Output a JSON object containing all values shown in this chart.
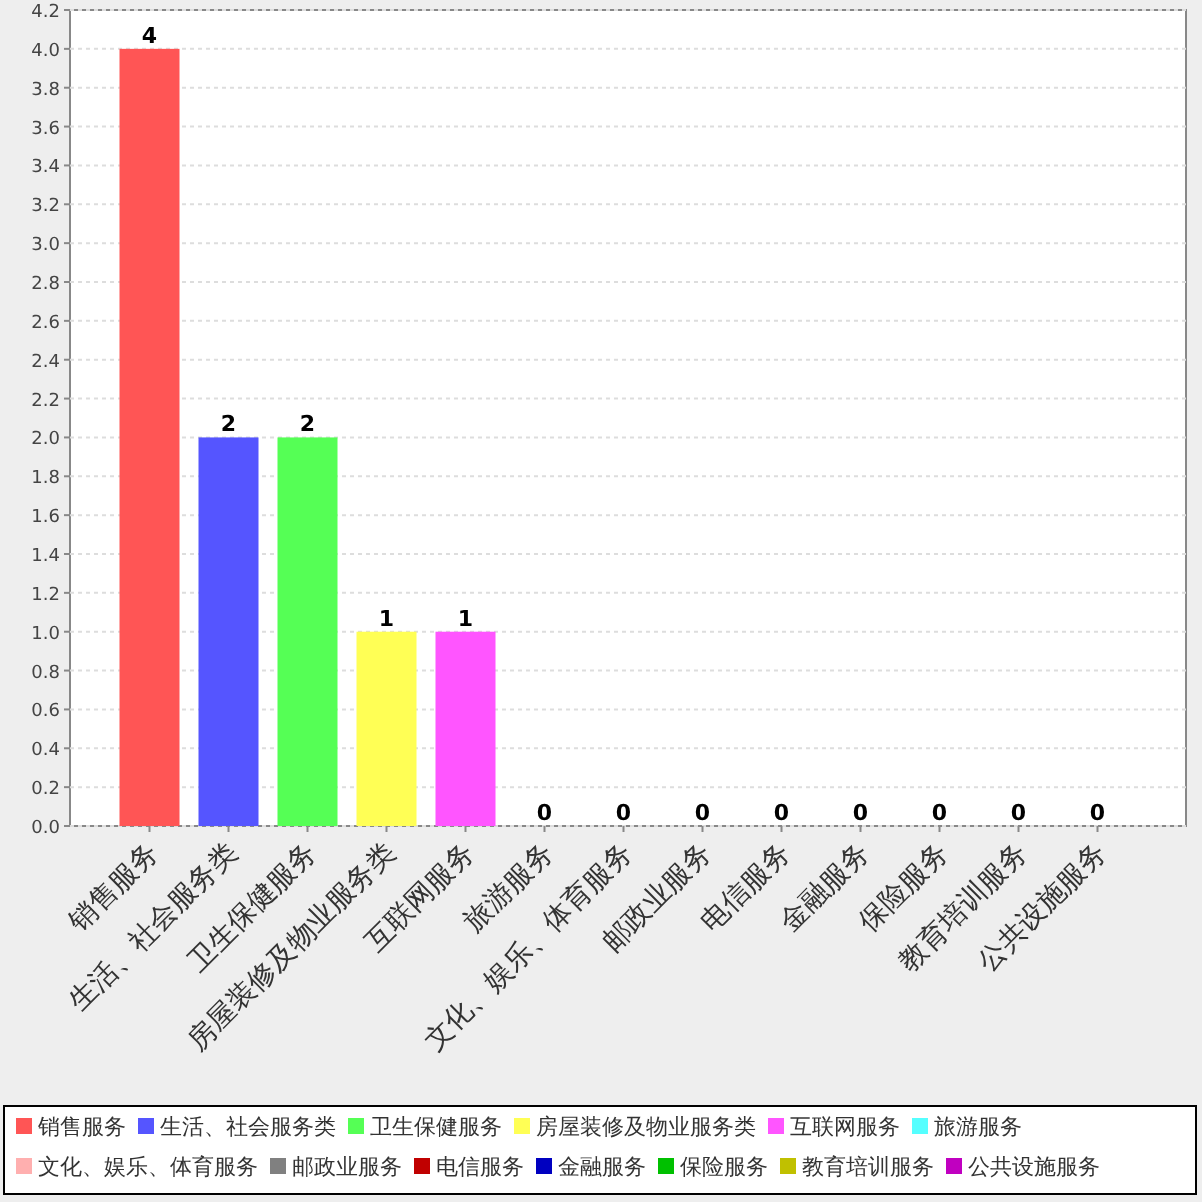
{
  "chart_data": {
    "type": "bar",
    "categories": [
      "销售服务",
      "生活、社会服务类",
      "卫生保健服务",
      "房屋装修及物业服务类",
      "互联网服务",
      "旅游服务",
      "文化、娱乐、体育服务",
      "邮政业服务",
      "电信服务",
      "金融服务",
      "保险服务",
      "教育培训服务",
      "公共设施服务"
    ],
    "series": [
      {
        "name": "销售服务",
        "color": "#ff5555",
        "values": [
          4,
          null,
          null,
          null,
          null,
          null,
          null,
          null,
          null,
          null,
          null,
          null,
          null
        ]
      },
      {
        "name": "生活、社会服务类",
        "color": "#5555ff",
        "values": [
          null,
          2,
          null,
          null,
          null,
          null,
          null,
          null,
          null,
          null,
          null,
          null,
          null
        ]
      },
      {
        "name": "卫生保健服务",
        "color": "#55ff55",
        "values": [
          null,
          null,
          2,
          null,
          null,
          null,
          null,
          null,
          null,
          null,
          null,
          null,
          null
        ]
      },
      {
        "name": "房屋装修及物业服务类",
        "color": "#ffff55",
        "values": [
          null,
          null,
          null,
          1,
          null,
          null,
          null,
          null,
          null,
          null,
          null,
          null,
          null
        ]
      },
      {
        "name": "互联网服务",
        "color": "#ff55ff",
        "values": [
          null,
          null,
          null,
          null,
          1,
          null,
          null,
          null,
          null,
          null,
          null,
          null,
          null
        ]
      },
      {
        "name": "旅游服务",
        "color": "#55ffff",
        "values": [
          null,
          null,
          null,
          null,
          null,
          0,
          null,
          null,
          null,
          null,
          null,
          null,
          null
        ]
      },
      {
        "name": "文化、娱乐、体育服务",
        "color": "#ffafaf",
        "values": [
          null,
          null,
          null,
          null,
          null,
          null,
          0,
          null,
          null,
          null,
          null,
          null,
          null
        ]
      },
      {
        "name": "邮政业服务",
        "color": "#808080",
        "values": [
          null,
          null,
          null,
          null,
          null,
          null,
          null,
          0,
          null,
          null,
          null,
          null,
          null
        ]
      },
      {
        "name": "电信服务",
        "color": "#c00000",
        "values": [
          null,
          null,
          null,
          null,
          null,
          null,
          null,
          null,
          0,
          null,
          null,
          null,
          null
        ]
      },
      {
        "name": "金融服务",
        "color": "#0000c0",
        "values": [
          null,
          null,
          null,
          null,
          null,
          null,
          null,
          null,
          null,
          0,
          null,
          null,
          null
        ]
      },
      {
        "name": "保险服务",
        "color": "#00c000",
        "values": [
          null,
          null,
          null,
          null,
          null,
          null,
          null,
          null,
          null,
          null,
          0,
          null,
          null
        ]
      },
      {
        "name": "教育培训服务",
        "color": "#c0c000",
        "values": [
          null,
          null,
          null,
          null,
          null,
          null,
          null,
          null,
          null,
          null,
          null,
          0,
          null
        ]
      },
      {
        "name": "公共设施服务",
        "color": "#c000c0",
        "values": [
          null,
          null,
          null,
          null,
          null,
          null,
          null,
          null,
          null,
          null,
          null,
          null,
          0
        ]
      }
    ],
    "ylim": [
      0,
      4.2
    ],
    "yticks": [
      {
        "value": 0,
        "label": "0.0"
      },
      {
        "value": 0.2,
        "label": "0.2"
      },
      {
        "value": 0.4,
        "label": "0.4"
      },
      {
        "value": 0.6,
        "label": "0.6"
      },
      {
        "value": 0.8,
        "label": "0.8"
      },
      {
        "value": 1,
        "label": "1.0"
      },
      {
        "value": 1.2,
        "label": "1.2"
      },
      {
        "value": 1.4,
        "label": "1.4"
      },
      {
        "value": 1.6,
        "label": "1.6"
      },
      {
        "value": 1.8,
        "label": "1.8"
      },
      {
        "value": 2,
        "label": "2.0"
      },
      {
        "value": 2.2,
        "label": "2.2"
      },
      {
        "value": 2.4,
        "label": "2.4"
      },
      {
        "value": 2.6,
        "label": "2.6"
      },
      {
        "value": 2.8,
        "label": "2.8"
      },
      {
        "value": 3,
        "label": "3.0"
      },
      {
        "value": 3.2,
        "label": "3.2"
      },
      {
        "value": 3.4,
        "label": "3.4"
      },
      {
        "value": 3.6,
        "label": "3.6"
      },
      {
        "value": 3.8,
        "label": "3.8"
      },
      {
        "value": 4,
        "label": "4.0"
      },
      {
        "value": 4.2,
        "label": "4.2"
      }
    ],
    "grid": "y",
    "data_labels": true,
    "legend": "bottom"
  }
}
